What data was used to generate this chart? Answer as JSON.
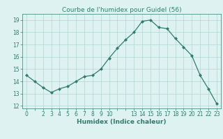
{
  "x": [
    0,
    1,
    2,
    3,
    4,
    5,
    6,
    7,
    8,
    9,
    10,
    11,
    12,
    13,
    14,
    15,
    16,
    17,
    18,
    19,
    20,
    21,
    22,
    23
  ],
  "y": [
    14.5,
    14.0,
    13.5,
    13.1,
    13.4,
    13.6,
    14.0,
    14.4,
    14.5,
    15.0,
    15.9,
    16.7,
    17.4,
    18.0,
    18.9,
    19.0,
    18.4,
    18.3,
    17.5,
    16.8,
    16.1,
    14.5,
    13.4,
    12.2
  ],
  "title": "Courbe de l'humidex pour Guidel (56)",
  "xlabel": "Humidex (Indice chaleur)",
  "xlim": [
    -0.5,
    23.5
  ],
  "ylim": [
    11.8,
    19.5
  ],
  "yticks": [
    12,
    13,
    14,
    15,
    16,
    17,
    18,
    19
  ],
  "xticks": [
    0,
    1,
    2,
    3,
    4,
    5,
    6,
    7,
    8,
    9,
    10,
    11,
    12,
    13,
    14,
    15,
    16,
    17,
    18,
    19,
    20,
    21,
    22,
    23
  ],
  "xtick_labels": [
    "0",
    "",
    "2",
    "3",
    "4",
    "5",
    "6",
    "7",
    "8",
    "9",
    "10",
    "",
    "",
    "13",
    "14",
    "15",
    "16",
    "17",
    "18",
    "19",
    "20",
    "21",
    "22",
    "23"
  ],
  "line_color": "#2e7d6e",
  "marker": "D",
  "marker_size": 2.0,
  "bg_color": "#dff2f2",
  "grid_color": "#b0d5d5",
  "title_fontsize": 6.5,
  "label_fontsize": 6.5,
  "tick_fontsize": 5.5
}
